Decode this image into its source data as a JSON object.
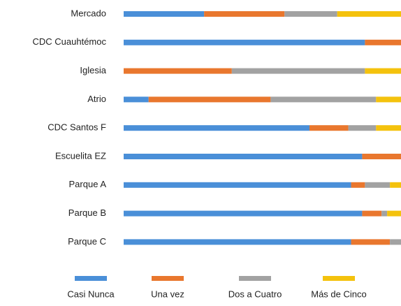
{
  "chart_data": {
    "type": "bar",
    "orientation": "horizontal",
    "stacked": true,
    "categories": [
      "Mercado",
      "CDC Cuauhtémoc",
      "Iglesia",
      "Atrio",
      "CDC Santos F",
      "Escuelita EZ",
      "Parque A",
      "Parque B",
      "Parque C"
    ],
    "xlim": [
      0,
      100
    ],
    "legend": "bottom",
    "series": [
      {
        "name": "Casi Nunca",
        "color": "#4a8fd8",
        "values": [
          29,
          87,
          0,
          9,
          67,
          86,
          82,
          86,
          82
        ]
      },
      {
        "name": "Una vez",
        "color": "#e9772e",
        "values": [
          29,
          13,
          39,
          44,
          14,
          14,
          5,
          7,
          14
        ]
      },
      {
        "name": "Dos a Cuatro",
        "color": "#a2a2a2",
        "values": [
          19,
          0,
          48,
          38,
          10,
          0,
          9,
          2,
          4
        ]
      },
      {
        "name": "Más de Cinco",
        "color": "#f4c20d",
        "values": [
          23,
          0,
          13,
          9,
          9,
          0,
          4,
          5,
          0
        ]
      }
    ]
  }
}
